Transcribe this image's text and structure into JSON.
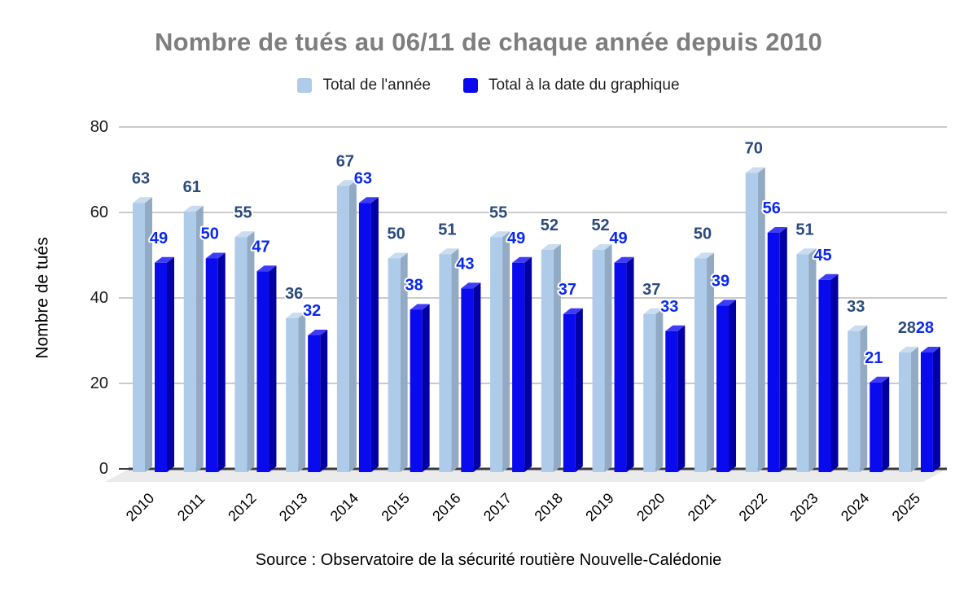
{
  "chart_data": {
    "type": "bar",
    "title": "Nombre de tués au 06/11 de chaque année depuis 2010",
    "ylabel": "Nombre de tués",
    "xlabel": "",
    "source": "Source : Observatoire de la sécurité routière Nouvelle-Calédonie",
    "categories": [
      "2010",
      "2011",
      "2012",
      "2013",
      "2014",
      "2015",
      "2016",
      "2017",
      "2018",
      "2019",
      "2020",
      "2021",
      "2022",
      "2023",
      "2024",
      "2025"
    ],
    "series": [
      {
        "name": "Total de l'année",
        "values": [
          63,
          61,
          55,
          36,
          67,
          50,
          51,
          55,
          52,
          52,
          37,
          50,
          70,
          51,
          33,
          28
        ],
        "color": "#AECBE9",
        "side_color": "#92AAC3",
        "top_color": "#C9DCF0",
        "label_color": "#2B4A7E"
      },
      {
        "name": "Total à la date du graphique",
        "values": [
          49,
          50,
          47,
          32,
          63,
          38,
          43,
          49,
          37,
          49,
          33,
          39,
          56,
          45,
          21,
          28
        ],
        "color": "#0A0AEF",
        "side_color": "#0000A4",
        "top_color": "#3C3CF9",
        "label_color": "#0A28F0"
      }
    ],
    "ylim": [
      0,
      80
    ],
    "yticks": [
      0,
      20,
      40,
      60,
      80
    ],
    "grid": true,
    "legend_position": "top",
    "colors": {
      "grid": "#CBCBCB",
      "axis_line": "#3B3B3B",
      "floor": "#EBEBEB",
      "title": "#7E7E7E",
      "tick_text": "#1B1B1B",
      "background": "#FFFFFF"
    }
  }
}
